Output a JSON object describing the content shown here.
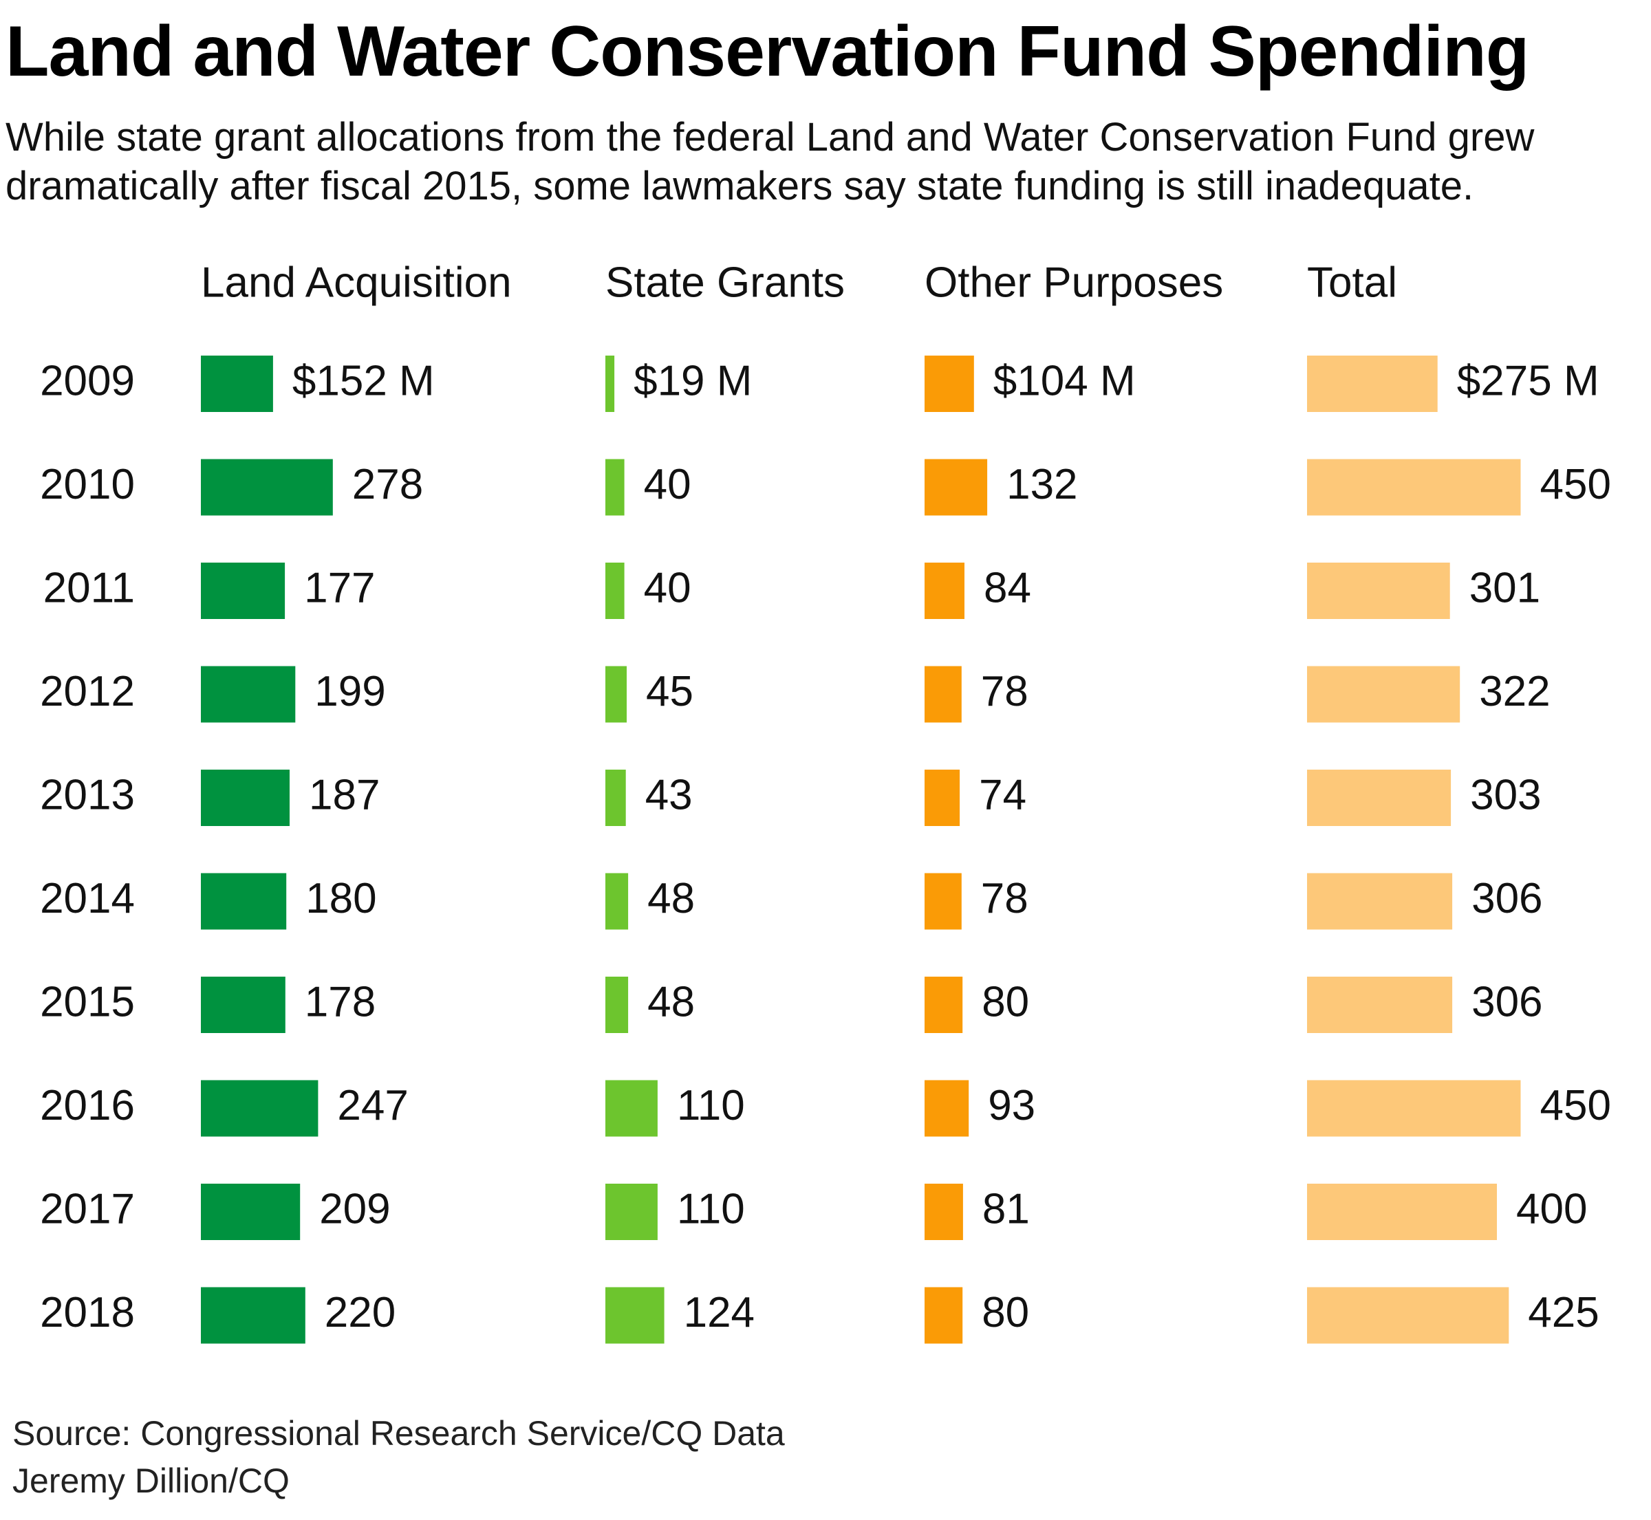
{
  "title": "Land and Water Conservation Fund Spending",
  "subtitle": "While state grant allocations from the federal Land and Water Conservation Fund grew dramatically after fiscal 2015, some lawmakers say state funding is still inadequate.",
  "source_line": "Source: Congressional Research Service/CQ Data",
  "credit_line": "Jeremy Dillion/CQ",
  "chart_data": {
    "type": "bar",
    "categories": [
      "2009",
      "2010",
      "2011",
      "2012",
      "2013",
      "2014",
      "2015",
      "2016",
      "2017",
      "2018"
    ],
    "series": [
      {
        "name": "Land Acquisition",
        "color": "#00923f",
        "values": [
          152,
          278,
          177,
          199,
          187,
          180,
          178,
          247,
          209,
          220
        ],
        "labels": [
          "$152 M",
          "278",
          "177",
          "199",
          "187",
          "180",
          "178",
          "247",
          "209",
          "220"
        ]
      },
      {
        "name": "State Grants",
        "color": "#6dc52e",
        "values": [
          19,
          40,
          40,
          45,
          43,
          48,
          48,
          110,
          110,
          124
        ],
        "labels": [
          "$19 M",
          "40",
          "40",
          "45",
          "43",
          "48",
          "48",
          "110",
          "110",
          "124"
        ]
      },
      {
        "name": "Other Purposes",
        "color": "#fa9b06",
        "values": [
          104,
          132,
          84,
          78,
          74,
          78,
          80,
          93,
          81,
          80
        ],
        "labels": [
          "$104 M",
          "132",
          "84",
          "78",
          "74",
          "78",
          "80",
          "93",
          "81",
          "80"
        ]
      },
      {
        "name": "Total",
        "color": "#fdc879",
        "values": [
          275,
          450,
          301,
          322,
          303,
          306,
          306,
          450,
          400,
          425
        ],
        "labels": [
          "$275 M",
          "450",
          "301",
          "322",
          "303",
          "306",
          "306",
          "450",
          "400",
          "425"
        ]
      }
    ],
    "unit": "M"
  }
}
